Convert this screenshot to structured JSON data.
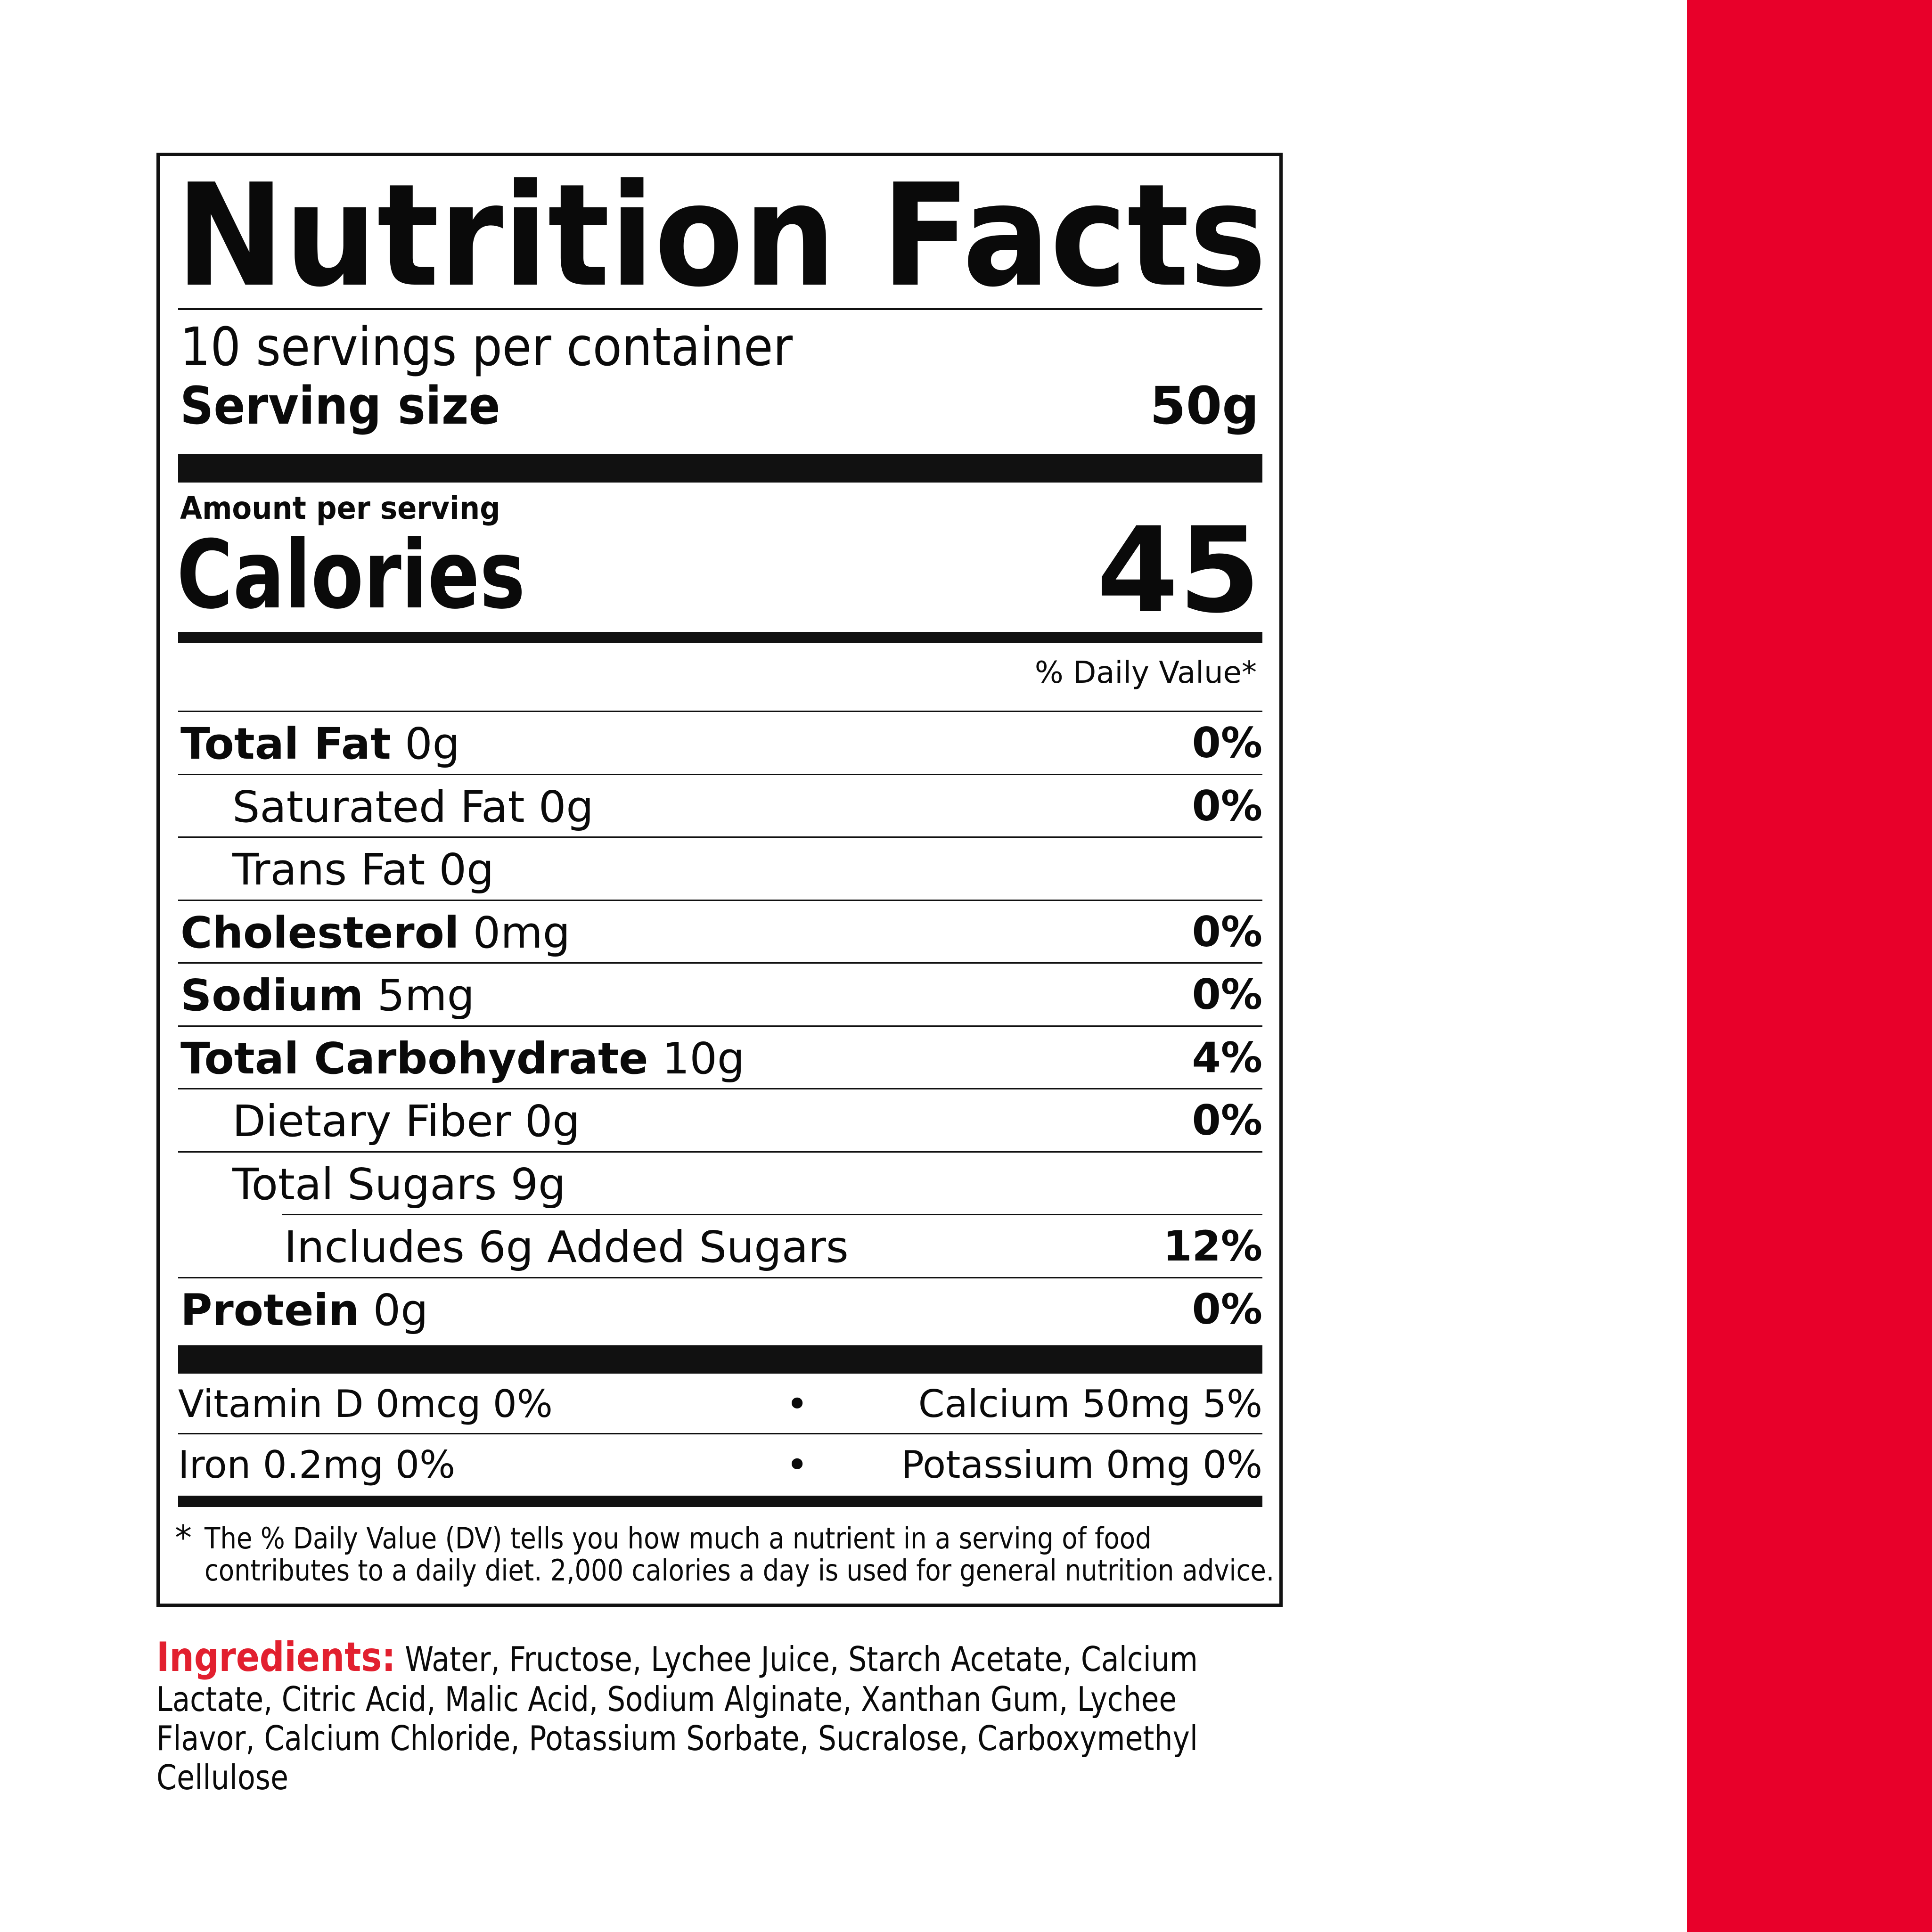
{
  "colors": {
    "accent_red": "#e8002a",
    "ingredients_label": "#e2202f",
    "text": "#0a0a0a"
  },
  "label": {
    "title": "Nutrition Facts",
    "servings": "10 servings per container",
    "serving_size_label": "Serving size",
    "serving_size_value": "50g",
    "amount_per_serving": "Amount per serving",
    "calories_label": "Calories",
    "calories_value": "45",
    "daily_value_header": "% Daily Value*",
    "nutrients": [
      {
        "name": "Total Fat",
        "amount": "0g",
        "dv": "0%"
      },
      {
        "name": "Saturated Fat 0g",
        "amount": "",
        "dv": "0%"
      },
      {
        "name": "Trans Fat 0g",
        "amount": "",
        "dv": ""
      },
      {
        "name": "Cholesterol",
        "amount": "0mg",
        "dv": "0%"
      },
      {
        "name": "Sodium",
        "amount": "5mg",
        "dv": "0%"
      },
      {
        "name": "Total Carbohydrate",
        "amount": "10g",
        "dv": "4%"
      },
      {
        "name": "Dietary Fiber 0g",
        "amount": "",
        "dv": "0%"
      },
      {
        "name": "Total Sugars 9g",
        "amount": "",
        "dv": ""
      },
      {
        "name": "Includes 6g Added Sugars",
        "amount": "",
        "dv": "12%"
      },
      {
        "name": "Protein",
        "amount": "0g",
        "dv": "0%"
      }
    ],
    "vitamins": [
      {
        "left": "Vitamin D 0mcg 0%",
        "sep": "•",
        "right": "Calcium 50mg 5%"
      },
      {
        "left": "Iron 0.2mg 0%",
        "sep": "•",
        "right": "Potassium 0mg 0%"
      }
    ],
    "footnote_star": "*",
    "footnote_line1": "The % Daily Value (DV) tells you how much a nutrient in a serving of food",
    "footnote_line2": "contributes to a daily diet. 2,000 calories a day is used for general nutrition advice."
  },
  "ingredients": {
    "label": "Ingredients:",
    "lines": [
      "Water, Fructose, Lychee Juice, Starch Acetate, Calcium",
      "Lactate, Citric Acid, Malic Acid, Sodium Alginate, Xanthan Gum, Lychee",
      "Flavor, Calcium Chloride, Potassium Sorbate, Sucralose, Carboxymethyl",
      "Cellulose"
    ]
  }
}
